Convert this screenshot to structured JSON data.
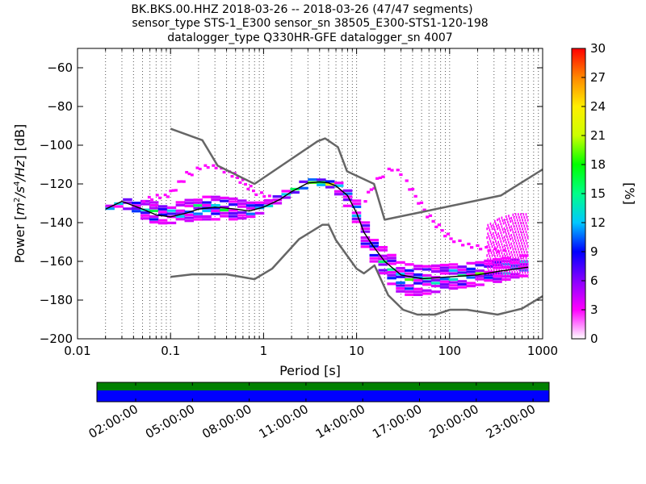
{
  "chart_data": {
    "type": "heatmap",
    "title_lines": [
      "BK.BKS.00.HHZ   2018-03-26 -- 2018-03-26  (47/47 segments)",
      "sensor_type STS-1_E300 sensor_sn 38505_E300-STS1-120-198",
      "datalogger_type Q330HR-GFE datalogger_sn 4007"
    ],
    "xlabel": "Period [s]",
    "ylabel_parts": {
      "prefix": "Power [",
      "m": "m",
      "e1": "2",
      "s": "/s",
      "e2": "4",
      "hz": "/Hz",
      "suffix": "] [dB]"
    },
    "x_scale": "log",
    "xlim": [
      0.01,
      1000
    ],
    "ylim": [
      -200,
      -50
    ],
    "x_ticks": [
      {
        "v": 0.01,
        "label": "0.01"
      },
      {
        "v": 0.1,
        "label": "0.1"
      },
      {
        "v": 1,
        "label": "1"
      },
      {
        "v": 10,
        "label": "10"
      },
      {
        "v": 100,
        "label": "100"
      },
      {
        "v": 1000,
        "label": "1000"
      }
    ],
    "y_ticks": [
      {
        "v": -60,
        "label": "−60"
      },
      {
        "v": -80,
        "label": "−80"
      },
      {
        "v": -100,
        "label": "−100"
      },
      {
        "v": -120,
        "label": "−120"
      },
      {
        "v": -140,
        "label": "−140"
      },
      {
        "v": -160,
        "label": "−160"
      },
      {
        "v": -180,
        "label": "−180"
      },
      {
        "v": -200,
        "label": "−200"
      }
    ],
    "grid": "vertical-dotted",
    "colorbar": {
      "label": "[%]",
      "range": [
        0,
        30
      ],
      "ticks": [
        {
          "v": 0,
          "label": "0"
        },
        {
          "v": 3,
          "label": "3"
        },
        {
          "v": 6,
          "label": "6"
        },
        {
          "v": 9,
          "label": "9"
        },
        {
          "v": 12,
          "label": "12"
        },
        {
          "v": 15,
          "label": "15"
        },
        {
          "v": 18,
          "label": "18"
        },
        {
          "v": 21,
          "label": "21"
        },
        {
          "v": 24,
          "label": "24"
        },
        {
          "v": 27,
          "label": "27"
        },
        {
          "v": 30,
          "label": "30"
        }
      ],
      "colors": [
        "#ffffff",
        "#ff00ff",
        "#8800ff",
        "#0000ff",
        "#00c8ff",
        "#00ff88",
        "#00ff00",
        "#ccff00",
        "#ffee00",
        "#ff8800",
        "#ff0000"
      ]
    },
    "high_noise_model": {
      "name": "NHNM",
      "color": "#666666",
      "x": [
        0.1,
        0.22,
        0.32,
        0.8,
        3.8,
        4.6,
        6.3,
        7.9,
        15.4,
        20,
        354.8,
        1000
      ],
      "y": [
        -91.5,
        -97.4,
        -110.5,
        -120,
        -98,
        -96.5,
        -101,
        -113.5,
        -120,
        -138.5,
        -126,
        -112.5
      ]
    },
    "low_noise_model": {
      "name": "NLNM",
      "color": "#666666",
      "x": [
        0.1,
        0.17,
        0.4,
        0.8,
        1.24,
        2.4,
        4.3,
        5,
        6,
        10,
        12,
        15.6,
        21.9,
        31.6,
        45,
        70,
        101,
        154,
        328,
        600,
        1000
      ],
      "y": [
        -168,
        -166.7,
        -166.7,
        -169.2,
        -163.7,
        -148.6,
        -141.1,
        -141.1,
        -149,
        -163.8,
        -166.2,
        -162.1,
        -177.5,
        -185,
        -187.5,
        -187.5,
        -185,
        -185,
        -187.5,
        -184.4,
        -178
      ]
    },
    "mean_curve": {
      "color": "#000000",
      "x": [
        0.02,
        0.03,
        0.05,
        0.07,
        0.1,
        0.15,
        0.2,
        0.3,
        0.5,
        0.7,
        1,
        1.5,
        2,
        3,
        4,
        5,
        6,
        8,
        10,
        12,
        15,
        20,
        30,
        50,
        100,
        200,
        350,
        500,
        700
      ],
      "y": [
        -133,
        -129,
        -133,
        -136,
        -137,
        -135,
        -133,
        -132,
        -133,
        -134,
        -132,
        -128,
        -124,
        -119.5,
        -119,
        -119.5,
        -121,
        -126,
        -135,
        -145,
        -152,
        -160,
        -167,
        -169,
        -168,
        -167,
        -165,
        -164,
        -163
      ]
    },
    "pdf_bands": [
      {
        "name": "noise-band",
        "x": [
          0.02,
          0.03,
          0.05,
          0.07,
          0.1,
          0.15,
          0.2,
          0.3,
          0.5,
          0.7,
          1,
          1.5,
          2,
          3,
          4,
          5,
          6,
          8,
          10,
          12,
          15,
          20,
          30,
          50,
          100,
          200,
          350,
          500,
          700
        ],
        "low": [
          -134,
          -132,
          -138,
          -141,
          -141,
          -140,
          -139,
          -139,
          -139,
          -138,
          -135,
          -130,
          -126,
          -122,
          -121,
          -122,
          -124,
          -132,
          -142,
          -152,
          -160,
          -168,
          -178,
          -178,
          -175,
          -173,
          -171,
          -169,
          -168
        ],
        "high": [
          -132,
          -127,
          -128,
          -129,
          -130,
          -128,
          -126,
          -126,
          -127,
          -129,
          -129,
          -125,
          -121,
          -117,
          -117,
          -118,
          -118,
          -121,
          -128,
          -138,
          -146,
          -153,
          -160,
          -162,
          -161,
          -160,
          -158,
          -157,
          -156
        ]
      },
      {
        "name": "outlier-band",
        "x": [
          0.05,
          0.1,
          0.15,
          0.22,
          0.3,
          0.5,
          0.8,
          1.2
        ],
        "low": [
          -130,
          -127,
          -118,
          -112,
          -112,
          -118,
          -126,
          -128
        ],
        "high": [
          -127,
          -123,
          -113,
          -110,
          -110,
          -114,
          -122,
          -126
        ]
      },
      {
        "name": "microseism-upper",
        "x": [
          12,
          15,
          20,
          25,
          30,
          40,
          60,
          100,
          150,
          250,
          400
        ],
        "low": [
          -131,
          -124,
          -116,
          -113,
          -116,
          -126,
          -139,
          -150,
          -153,
          -155,
          -156
        ],
        "high": [
          -128,
          -119,
          -112,
          -111,
          -113,
          -122,
          -135,
          -146,
          -150,
          -152,
          -154
        ]
      },
      {
        "name": "long-period-scatter",
        "x": [
          250,
          350,
          500,
          700
        ],
        "low": [
          -167,
          -167,
          -168,
          -168
        ],
        "high": [
          -141,
          -137,
          -135,
          -135
        ]
      }
    ],
    "time_axis": {
      "labels": [
        "02:00:00",
        "05:00:00",
        "08:00:00",
        "11:00:00",
        "14:00:00",
        "17:00:00",
        "20:00:00",
        "23:00:00"
      ],
      "top_color": "#008000",
      "bottom_color": "#0000ff"
    }
  }
}
